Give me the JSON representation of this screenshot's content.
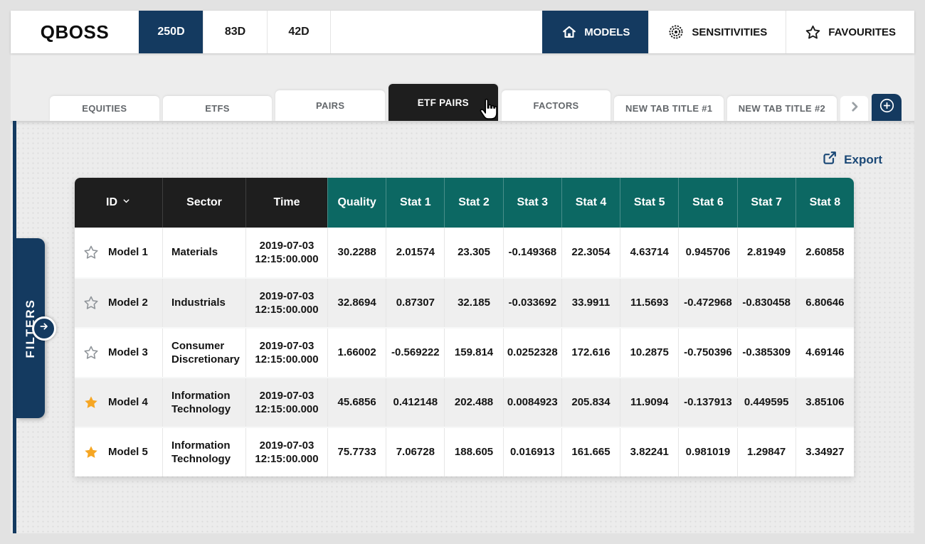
{
  "brand": {
    "logo": "QBOSS"
  },
  "colors": {
    "navy": "#143A60",
    "black_tab": "#1E1E1E",
    "teal": "#0C6863",
    "star_orange": "#F6A623",
    "export_blue": "#1A4876"
  },
  "topbar": {
    "period_tabs": [
      {
        "label": "250D",
        "active": true
      },
      {
        "label": "83D",
        "active": false
      },
      {
        "label": "42D",
        "active": false
      }
    ],
    "nav": [
      {
        "label": "MODELS",
        "icon": "home-icon",
        "active": true
      },
      {
        "label": "SENSITIVITIES",
        "icon": "network-icon",
        "active": false
      },
      {
        "label": "FAVOURITES",
        "icon": "star-icon",
        "active": false
      }
    ]
  },
  "tabs": [
    {
      "label": "EQUITIES",
      "active": false
    },
    {
      "label": "ETFS",
      "active": false
    },
    {
      "label": "PAIRS",
      "active": false
    },
    {
      "label": "ETF PAIRS",
      "active": true
    },
    {
      "label": "FACTORS",
      "active": false
    },
    {
      "label": "NEW TAB TITLE #1",
      "active": false
    },
    {
      "label": "NEW TAB TITLE #2",
      "active": false
    }
  ],
  "filters_panel": {
    "label": "FILTERS"
  },
  "export": {
    "label": "Export"
  },
  "table": {
    "columns": [
      {
        "label": "ID",
        "group": "dark",
        "sortable": true
      },
      {
        "label": "Sector",
        "group": "dark"
      },
      {
        "label": "Time",
        "group": "dark"
      },
      {
        "label": "Quality",
        "group": "teal"
      },
      {
        "label": "Stat 1",
        "group": "teal"
      },
      {
        "label": "Stat 2",
        "group": "teal"
      },
      {
        "label": "Stat 3",
        "group": "teal"
      },
      {
        "label": "Stat 4",
        "group": "teal"
      },
      {
        "label": "Stat 5",
        "group": "teal"
      },
      {
        "label": "Stat 6",
        "group": "teal"
      },
      {
        "label": "Stat 7",
        "group": "teal"
      },
      {
        "label": "Stat 8",
        "group": "teal"
      }
    ],
    "rows": [
      {
        "starred": false,
        "id": "Model 1",
        "sector": "Materials",
        "time_date": "2019-07-03",
        "time_ms": "12:15:00.000",
        "values": [
          "30.2288",
          "2.01574",
          "23.305",
          "-0.149368",
          "22.3054",
          "4.63714",
          "0.945706",
          "2.81949",
          "2.60858"
        ]
      },
      {
        "starred": false,
        "id": "Model 2",
        "sector": "Industrials",
        "time_date": "2019-07-03",
        "time_ms": "12:15:00.000",
        "values": [
          "32.8694",
          "0.87307",
          "32.185",
          "-0.033692",
          "33.9911",
          "11.5693",
          "-0.472968",
          "-0.830458",
          "6.80646"
        ]
      },
      {
        "starred": false,
        "id": "Model 3",
        "sector": "Consumer Discretionary",
        "time_date": "2019-07-03",
        "time_ms": "12:15:00.000",
        "values": [
          "1.66002",
          "-0.569222",
          "159.814",
          "0.0252328",
          "172.616",
          "10.2875",
          "-0.750396",
          "-0.385309",
          "4.69146"
        ]
      },
      {
        "starred": true,
        "id": "Model 4",
        "sector": "Information Technology",
        "time_date": "2019-07-03",
        "time_ms": "12:15:00.000",
        "values": [
          "45.6856",
          "0.412148",
          "202.488",
          "0.0084923",
          "205.834",
          "11.9094",
          "-0.137913",
          "0.449595",
          "3.85106"
        ]
      },
      {
        "starred": true,
        "id": "Model 5",
        "sector": "Information Technology",
        "time_date": "2019-07-03",
        "time_ms": "12:15:00.000",
        "values": [
          "75.7733",
          "7.06728",
          "188.605",
          "0.016913",
          "161.665",
          "3.82241",
          "0.981019",
          "1.29847",
          "3.34927"
        ]
      }
    ]
  }
}
